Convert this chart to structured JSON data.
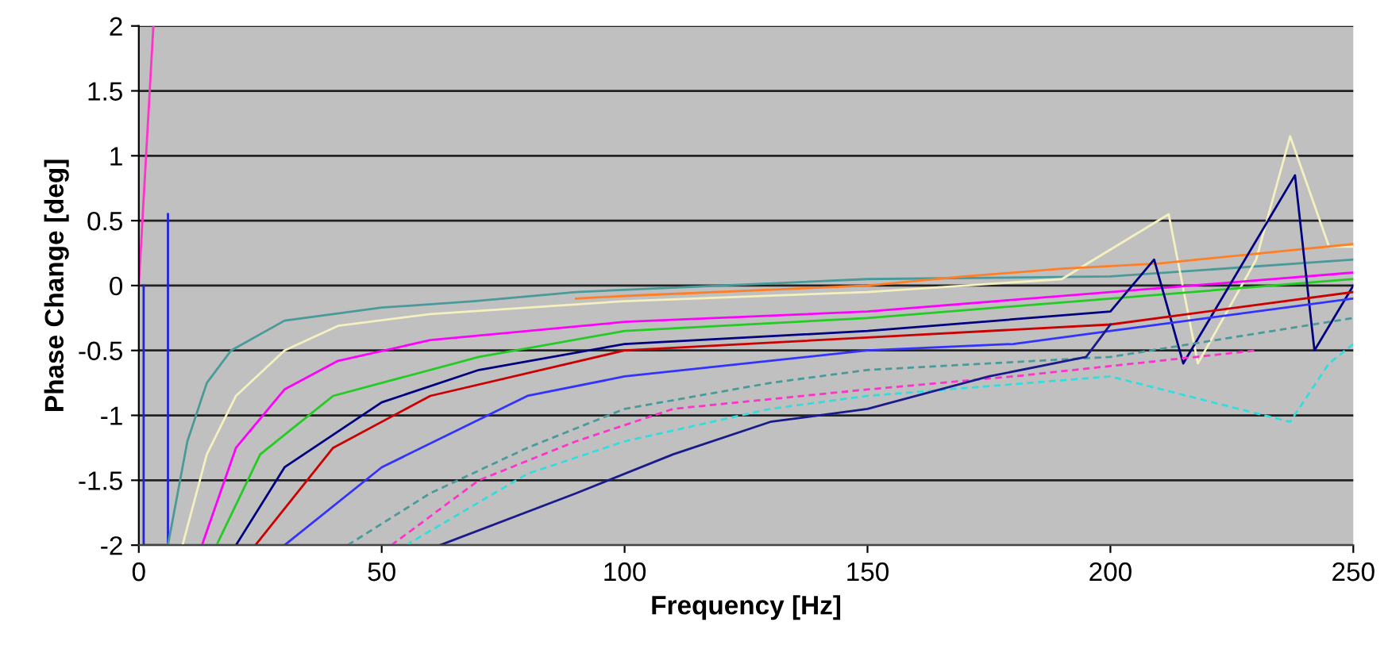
{
  "chart_data": {
    "type": "line",
    "xlabel": "Frequency [Hz]",
    "ylabel": "Phase Change [deg]",
    "xlim": [
      0,
      250
    ],
    "ylim": [
      -2,
      2
    ],
    "xticks": [
      0,
      50,
      100,
      150,
      200,
      250
    ],
    "yticks": [
      {
        "value": -2,
        "label": "-2"
      },
      {
        "value": -1.5,
        "label": "-1.5"
      },
      {
        "value": -1,
        "label": "-1"
      },
      {
        "value": -0.5,
        "label": "-0.5"
      },
      0,
      0.5,
      1,
      1.5,
      2
    ],
    "grid": "y",
    "legend": false,
    "marker": "none",
    "series": [
      {
        "color": "#ff33cc",
        "x": [
          0,
          3
        ],
        "values": [
          0,
          2
        ]
      },
      {
        "color": "#2222dd",
        "x": [
          1,
          1,
          6,
          6
        ],
        "values": [
          0,
          -2,
          -2,
          0.55
        ]
      },
      {
        "color": "#4a9a9a",
        "x": [
          6,
          10,
          14,
          19,
          30,
          50,
          69,
          90,
          120,
          150,
          200,
          250
        ],
        "values": [
          -2,
          -1.2,
          -0.75,
          -0.5,
          -0.27,
          -0.17,
          -0.12,
          -0.05,
          0.0,
          0.05,
          0.07,
          0.2
        ]
      },
      {
        "color": "#f5f0c0",
        "x": [
          9,
          14,
          20,
          30,
          41,
          60,
          100,
          150,
          190,
          212,
          218,
          230,
          237,
          245,
          250
        ],
        "values": [
          -2,
          -1.3,
          -0.85,
          -0.5,
          -0.31,
          -0.22,
          -0.12,
          -0.05,
          0.05,
          0.55,
          -0.6,
          0.2,
          1.15,
          0.3,
          0.3
        ]
      },
      {
        "color": "#ff7f27",
        "x": [
          90,
          100,
          150,
          170,
          190,
          210,
          250
        ],
        "values": [
          -0.1,
          -0.08,
          0.0,
          0.07,
          0.13,
          0.17,
          0.32
        ]
      },
      {
        "color": "#ff00ff",
        "x": [
          13,
          20,
          30,
          41,
          60,
          100,
          150,
          200,
          250
        ],
        "values": [
          -2,
          -1.25,
          -0.8,
          -0.58,
          -0.42,
          -0.28,
          -0.2,
          -0.05,
          0.1
        ]
      },
      {
        "color": "#22cc22",
        "x": [
          16,
          25,
          40,
          70,
          100,
          150,
          200,
          250
        ],
        "values": [
          -2,
          -1.3,
          -0.85,
          -0.55,
          -0.35,
          -0.25,
          -0.1,
          0.05
        ]
      },
      {
        "color": "#000080",
        "x": [
          20,
          30,
          50,
          70,
          100,
          150,
          200,
          209,
          215,
          238,
          242,
          250
        ],
        "values": [
          -2,
          -1.4,
          -0.9,
          -0.65,
          -0.45,
          -0.35,
          -0.2,
          0.2,
          -0.6,
          0.85,
          -0.5,
          0.0
        ]
      },
      {
        "color": "#cc0000",
        "x": [
          24,
          40,
          60,
          100,
          150,
          200,
          250
        ],
        "values": [
          -2,
          -1.25,
          -0.85,
          -0.5,
          -0.4,
          -0.3,
          -0.05
        ]
      },
      {
        "color": "#3333ff",
        "x": [
          30,
          50,
          80,
          100,
          150,
          180,
          200,
          250
        ],
        "values": [
          -2,
          -1.4,
          -0.85,
          -0.7,
          -0.5,
          -0.45,
          -0.35,
          -0.1
        ]
      },
      {
        "color": "#4a9a9a",
        "line_style": "dashed",
        "x": [
          43,
          60,
          80,
          100,
          130,
          150,
          200,
          250
        ],
        "values": [
          -2,
          -1.6,
          -1.25,
          -0.95,
          -0.75,
          -0.65,
          -0.55,
          -0.25
        ]
      },
      {
        "color": "#ff33cc",
        "line_style": "dashed",
        "x": [
          52,
          70,
          90,
          110,
          150,
          180,
          230
        ],
        "values": [
          -2,
          -1.5,
          -1.2,
          -0.95,
          -0.8,
          -0.7,
          -0.5
        ]
      },
      {
        "color": "#33dddd",
        "line_style": "dashed",
        "x": [
          55,
          80,
          100,
          130,
          150,
          200,
          237,
          245,
          250
        ],
        "values": [
          -2,
          -1.45,
          -1.2,
          -0.95,
          -0.85,
          -0.7,
          -1.05,
          -0.6,
          -0.45
        ]
      },
      {
        "color": "#1a1a8c",
        "x": [
          62,
          90,
          110,
          130,
          150,
          175,
          195,
          200
        ],
        "values": [
          -2,
          -1.6,
          -1.3,
          -1.05,
          -0.95,
          -0.7,
          -0.55,
          -0.3
        ]
      }
    ]
  }
}
